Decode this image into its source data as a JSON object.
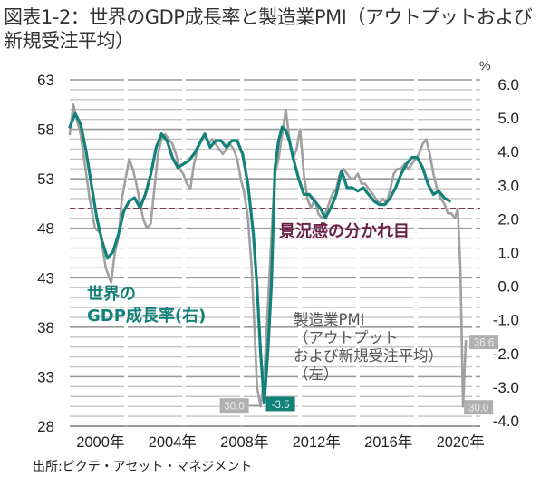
{
  "title": "図表1-2：世界のGDP成長率と製造業PMI（アウトプットおよび新規受注平均）",
  "source": "出所:ピクテ・アセット・マネジメント",
  "chart_data": {
    "type": "line",
    "title": "図表1-2：世界のGDP成長率と製造業PMI（アウトプットおよび新規受注平均）",
    "left_axis": {
      "label": "",
      "ylim": [
        28,
        63
      ],
      "ticks": [
        "63",
        "58",
        "53",
        "48",
        "43",
        "38",
        "33",
        "28"
      ],
      "tick_values": [
        63,
        58,
        53,
        48,
        43,
        38,
        33,
        28
      ]
    },
    "right_axis": {
      "unit": "%",
      "ylim": [
        -4.0,
        6.0
      ],
      "ticks": [
        "6.0",
        "5.0",
        "4.0",
        "3.0",
        "2.0",
        "1.0",
        "0.0",
        "-1.0",
        "-2.0",
        "-3.0",
        "-4.0"
      ],
      "tick_values": [
        6,
        5,
        4,
        3,
        2,
        1,
        0,
        -1,
        -2,
        -3,
        -4
      ]
    },
    "x_ticks": [
      "2000年",
      "2004年",
      "2008年",
      "2012年",
      "2016年",
      "2020年"
    ],
    "x_tick_values": [
      2000,
      2004,
      2008,
      2012,
      2016,
      2020
    ],
    "xlim": [
      1998.6,
      2021.4
    ],
    "grid": true,
    "threshold": {
      "value": 50,
      "axis": "left",
      "label": "景況感の分かれ目",
      "color": "#6b2046"
    },
    "series": [
      {
        "name": "製造業PMI（アウトプットおよび新規受注平均）（左）",
        "axis": "left",
        "color": "#a0a0a0",
        "x": [
          1998.6,
          1998.8,
          1999.0,
          1999.2,
          1999.4,
          1999.7,
          2000.0,
          2000.3,
          2000.6,
          2000.9,
          2001.1,
          2001.3,
          2001.5,
          2001.7,
          2001.9,
          2002.1,
          2002.3,
          2002.5,
          2002.7,
          2002.9,
          2003.1,
          2003.3,
          2003.5,
          2003.7,
          2003.9,
          2004.1,
          2004.3,
          2004.5,
          2004.7,
          2004.9,
          2005.1,
          2005.3,
          2005.5,
          2005.7,
          2005.9,
          2006.1,
          2006.3,
          2006.5,
          2006.7,
          2006.9,
          2007.1,
          2007.3,
          2007.5,
          2007.7,
          2007.9,
          2008.1,
          2008.3,
          2008.5,
          2008.7,
          2008.9,
          2009.0,
          2009.2,
          2009.4,
          2009.6,
          2009.8,
          2010.0,
          2010.2,
          2010.4,
          2010.6,
          2010.8,
          2011.0,
          2011.2,
          2011.4,
          2011.6,
          2011.8,
          2012.0,
          2012.2,
          2012.4,
          2012.6,
          2012.8,
          2013.0,
          2013.2,
          2013.4,
          2013.6,
          2013.8,
          2014.0,
          2014.2,
          2014.4,
          2014.6,
          2014.8,
          2015.0,
          2015.2,
          2015.4,
          2015.6,
          2015.8,
          2016.0,
          2016.2,
          2016.4,
          2016.6,
          2016.8,
          2017.0,
          2017.2,
          2017.4,
          2017.6,
          2017.8,
          2018.0,
          2018.2,
          2018.4,
          2018.6,
          2018.8,
          2019.0,
          2019.2,
          2019.4,
          2019.6,
          2019.8,
          2020.0,
          2020.15,
          2020.3,
          2020.45,
          2020.6
        ],
        "y": [
          57.5,
          60.5,
          59.0,
          57.5,
          55.0,
          51.0,
          48.0,
          47.5,
          44.0,
          42.5,
          45.5,
          47.0,
          51.0,
          53.0,
          55.0,
          54.0,
          52.5,
          50.5,
          48.8,
          48.0,
          48.5,
          52.0,
          55.5,
          57.0,
          57.5,
          57.0,
          56.5,
          55.5,
          54.0,
          53.5,
          52.5,
          52.0,
          54.5,
          56.0,
          57.0,
          57.5,
          56.5,
          57.0,
          56.5,
          56.0,
          55.5,
          56.0,
          56.5,
          56.0,
          55.0,
          53.0,
          51.5,
          49.0,
          44.0,
          36.5,
          32.0,
          30.0,
          33.0,
          40.0,
          47.0,
          53.5,
          55.0,
          57.5,
          60.0,
          57.0,
          55.0,
          56.0,
          58.0,
          53.5,
          51.0,
          50.0,
          51.0,
          49.5,
          49.0,
          49.5,
          50.5,
          51.5,
          52.0,
          53.5,
          54.0,
          53.5,
          53.0,
          53.0,
          53.5,
          52.5,
          52.5,
          52.0,
          51.5,
          51.0,
          50.5,
          51.0,
          50.5,
          52.0,
          53.5,
          54.0,
          54.0,
          54.5,
          54.0,
          54.5,
          55.0,
          55.5,
          56.5,
          57.0,
          55.5,
          53.5,
          52.0,
          51.0,
          50.5,
          49.5,
          49.5,
          49.0,
          50.0,
          44.0,
          30.0,
          36.6
        ],
        "annotations": [
          {
            "label": "30.0",
            "x": 2009.2,
            "y": 30.0
          },
          {
            "label": "30.0",
            "x": 2020.3,
            "y": 30.0
          },
          {
            "label": "36.6",
            "x": 2020.6,
            "y": 36.6
          }
        ]
      },
      {
        "name": "世界のGDP成長率（右）",
        "axis": "right",
        "color": "#13817a",
        "x": [
          1998.6,
          1998.9,
          1999.2,
          1999.5,
          1999.8,
          2000.1,
          2000.4,
          2000.7,
          2001.0,
          2001.3,
          2001.6,
          2001.9,
          2002.2,
          2002.5,
          2002.8,
          2003.1,
          2003.4,
          2003.7,
          2004.0,
          2004.3,
          2004.6,
          2004.9,
          2005.2,
          2005.5,
          2005.8,
          2006.1,
          2006.4,
          2006.7,
          2007.0,
          2007.3,
          2007.6,
          2007.9,
          2008.2,
          2008.5,
          2008.8,
          2009.0,
          2009.2,
          2009.4,
          2009.6,
          2009.8,
          2010.0,
          2010.2,
          2010.4,
          2010.6,
          2010.8,
          2011.0,
          2011.3,
          2011.6,
          2011.9,
          2012.2,
          2012.5,
          2012.8,
          2013.1,
          2013.4,
          2013.7,
          2014.0,
          2014.3,
          2014.6,
          2014.9,
          2015.2,
          2015.5,
          2015.8,
          2016.1,
          2016.4,
          2016.7,
          2017.0,
          2017.3,
          2017.6,
          2017.9,
          2018.2,
          2018.5,
          2018.8,
          2019.1,
          2019.4,
          2019.7
        ],
        "y": [
          4.7,
          5.1,
          4.8,
          4.0,
          3.0,
          2.0,
          1.3,
          0.8,
          1.0,
          1.5,
          2.2,
          2.5,
          2.6,
          2.3,
          2.7,
          3.3,
          4.1,
          4.5,
          4.3,
          3.8,
          3.5,
          3.6,
          3.7,
          3.9,
          4.2,
          4.5,
          4.1,
          4.3,
          4.3,
          4.1,
          4.3,
          4.3,
          3.9,
          3.0,
          1.5,
          0.0,
          -2.0,
          -3.5,
          -2.0,
          0.0,
          3.5,
          4.3,
          4.7,
          4.6,
          4.3,
          3.8,
          3.2,
          2.7,
          2.7,
          2.5,
          2.3,
          2.0,
          2.3,
          2.7,
          3.4,
          2.9,
          2.9,
          2.8,
          2.9,
          2.7,
          2.5,
          2.4,
          2.4,
          2.6,
          2.9,
          3.3,
          3.6,
          3.8,
          3.8,
          3.5,
          3.0,
          2.7,
          2.8,
          2.6,
          2.5
        ],
        "annotations": [
          {
            "label": "-3.5",
            "x": 2009.4,
            "y": -3.5
          }
        ]
      }
    ],
    "labels": [
      {
        "text_lines": [
          "世界の",
          "GDP成長率(右)"
        ],
        "series": "世界のGDP成長率（右）"
      },
      {
        "text_lines": [
          "製造業PMI",
          "（アウトプット",
          "および新規受注平均）",
          "（左）"
        ],
        "series": "製造業PMI（アウトプットおよび新規受注平均）（左）"
      }
    ],
    "right_unit_label": "%"
  }
}
